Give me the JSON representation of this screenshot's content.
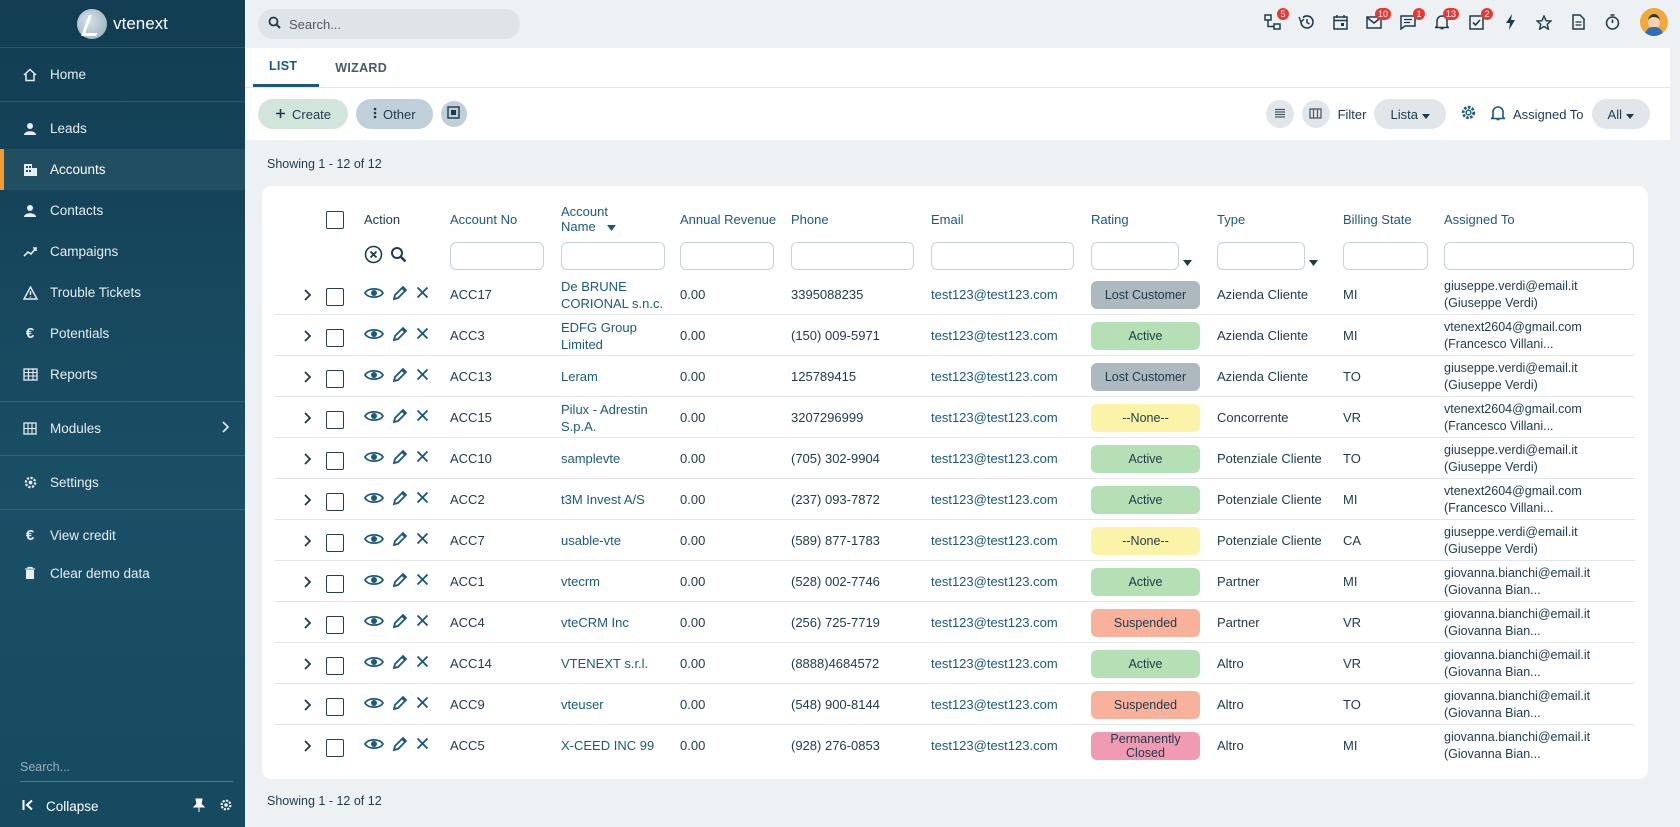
{
  "app": {
    "name": "vtenext"
  },
  "sidebar": {
    "items": [
      {
        "label": "Home",
        "icon": "home-icon"
      },
      {
        "label": "Leads",
        "icon": "person-icon"
      },
      {
        "label": "Accounts",
        "icon": "building-icon"
      },
      {
        "label": "Contacts",
        "icon": "person-icon"
      },
      {
        "label": "Campaigns",
        "icon": "trend-icon"
      },
      {
        "label": "Trouble Tickets",
        "icon": "warning-icon"
      },
      {
        "label": "Potentials",
        "icon": "euro-icon"
      },
      {
        "label": "Reports",
        "icon": "table-icon"
      },
      {
        "label": "Modules",
        "icon": "grid-icon"
      },
      {
        "label": "Settings",
        "icon": "gear-icon"
      },
      {
        "label": "View credit",
        "icon": "euro-icon"
      },
      {
        "label": "Clear demo data",
        "icon": "trash-icon"
      }
    ],
    "search_placeholder": "Search...",
    "collapse_label": "Collapse"
  },
  "topbar": {
    "search_placeholder": "Search...",
    "badges": {
      "hierarchy": "5",
      "mail": "10",
      "chat": "1",
      "bell": "13",
      "tasks": "2"
    }
  },
  "tabs": [
    "LIST",
    "WIZARD"
  ],
  "toolbar": {
    "create_label": "Create",
    "other_label": "Other",
    "filter_label": "Filter",
    "filter_value": "Lista",
    "assigned_label": "Assigned To",
    "assigned_value": "All"
  },
  "showing_text": "Showing 1 - 12 of 12",
  "table": {
    "headers": {
      "action": "Action",
      "account_no": "Account No",
      "account_name_1": "Account",
      "account_name_2": "Name",
      "annual_revenue": "Annual Revenue",
      "phone": "Phone",
      "email": "Email",
      "rating": "Rating",
      "type": "Type",
      "billing_state": "Billing State",
      "assigned_to": "Assigned To"
    },
    "rating_colors": {
      "Lost Customer": "#adb8bf",
      "Active": "#b5dfb4",
      "--None--": "#fbf3a8",
      "Suspended": "#f8b29c",
      "Permanently Closed": "#f09ab4"
    },
    "rows": [
      {
        "no": "ACC17",
        "name_1": "De BRUNE",
        "name_2": "CORIONAL s.n.c.",
        "revenue": "0.00",
        "phone": "3395088235",
        "email": "test123@test123.com",
        "rating_1": "Lost Customer",
        "rating_2": "",
        "rating_key": "Lost Customer",
        "type": "Azienda Cliente",
        "state": "MI",
        "assigned_1": "giuseppe.verdi@email.it",
        "assigned_2": "(Giuseppe Verdi)"
      },
      {
        "no": "ACC3",
        "name_1": "EDFG Group",
        "name_2": "Limited",
        "revenue": "0.00",
        "phone": "(150) 009-5971",
        "email": "test123@test123.com",
        "rating_1": "Active",
        "rating_2": "",
        "rating_key": "Active",
        "type": "Azienda Cliente",
        "state": "MI",
        "assigned_1": "vtenext2604@gmail.com",
        "assigned_2": "(Francesco Villani..."
      },
      {
        "no": "ACC13",
        "name_1": "Leram",
        "name_2": "",
        "revenue": "0.00",
        "phone": "125789415",
        "email": "test123@test123.com",
        "rating_1": "Lost Customer",
        "rating_2": "",
        "rating_key": "Lost Customer",
        "type": "Azienda Cliente",
        "state": "TO",
        "assigned_1": "giuseppe.verdi@email.it",
        "assigned_2": "(Giuseppe Verdi)"
      },
      {
        "no": "ACC15",
        "name_1": "Pilux - Adrestin",
        "name_2": "S.p.A.",
        "revenue": "0.00",
        "phone": "3207296999",
        "email": "test123@test123.com",
        "rating_1": "--None--",
        "rating_2": "",
        "rating_key": "--None--",
        "type": "Concorrente",
        "state": "VR",
        "assigned_1": "vtenext2604@gmail.com",
        "assigned_2": "(Francesco Villani..."
      },
      {
        "no": "ACC10",
        "name_1": "samplevte",
        "name_2": "",
        "revenue": "0.00",
        "phone": "(705) 302-9904",
        "email": "test123@test123.com",
        "rating_1": "Active",
        "rating_2": "",
        "rating_key": "Active",
        "type": "Potenziale Cliente",
        "state": "TO",
        "assigned_1": "giuseppe.verdi@email.it",
        "assigned_2": "(Giuseppe Verdi)"
      },
      {
        "no": "ACC2",
        "name_1": "t3M Invest A/S",
        "name_2": "",
        "revenue": "0.00",
        "phone": "(237) 093-7872",
        "email": "test123@test123.com",
        "rating_1": "Active",
        "rating_2": "",
        "rating_key": "Active",
        "type": "Potenziale Cliente",
        "state": "MI",
        "assigned_1": "vtenext2604@gmail.com",
        "assigned_2": "(Francesco Villani..."
      },
      {
        "no": "ACC7",
        "name_1": "usable-vte",
        "name_2": "",
        "revenue": "0.00",
        "phone": "(589) 877-1783",
        "email": "test123@test123.com",
        "rating_1": "--None--",
        "rating_2": "",
        "rating_key": "--None--",
        "type": "Potenziale Cliente",
        "state": "CA",
        "assigned_1": "giuseppe.verdi@email.it",
        "assigned_2": "(Giuseppe Verdi)"
      },
      {
        "no": "ACC1",
        "name_1": "vtecrm",
        "name_2": "",
        "revenue": "0.00",
        "phone": "(528) 002-7746",
        "email": "test123@test123.com",
        "rating_1": "Active",
        "rating_2": "",
        "rating_key": "Active",
        "type": "Partner",
        "state": "MI",
        "assigned_1": "giovanna.bianchi@email.it",
        "assigned_2": "(Giovanna Bian..."
      },
      {
        "no": "ACC4",
        "name_1": "vteCRM Inc",
        "name_2": "",
        "revenue": "0.00",
        "phone": "(256) 725-7719",
        "email": "test123@test123.com",
        "rating_1": "Suspended",
        "rating_2": "",
        "rating_key": "Suspended",
        "type": "Partner",
        "state": "VR",
        "assigned_1": "giovanna.bianchi@email.it",
        "assigned_2": "(Giovanna Bian..."
      },
      {
        "no": "ACC14",
        "name_1": "VTENEXT s.r.l.",
        "name_2": "",
        "revenue": "0.00",
        "phone": "(8888)4684572",
        "email": "test123@test123.com",
        "rating_1": "Active",
        "rating_2": "",
        "rating_key": "Active",
        "type": "Altro",
        "state": "VR",
        "assigned_1": "giovanna.bianchi@email.it",
        "assigned_2": "(Giovanna Bian..."
      },
      {
        "no": "ACC9",
        "name_1": "vteuser",
        "name_2": "",
        "revenue": "0.00",
        "phone": "(548) 900-8144",
        "email": "test123@test123.com",
        "rating_1": "Suspended",
        "rating_2": "",
        "rating_key": "Suspended",
        "type": "Altro",
        "state": "TO",
        "assigned_1": "giovanna.bianchi@email.it",
        "assigned_2": "(Giovanna Bian..."
      },
      {
        "no": "ACC5",
        "name_1": "X-CEED INC 99",
        "name_2": "",
        "revenue": "0.00",
        "phone": "(928) 276-0853",
        "email": "test123@test123.com",
        "rating_1": "Permanently",
        "rating_2": "Closed",
        "rating_key": "Permanently Closed",
        "type": "Altro",
        "state": "MI",
        "assigned_1": "giovanna.bianchi@email.it",
        "assigned_2": "(Giovanna Bian..."
      }
    ]
  }
}
